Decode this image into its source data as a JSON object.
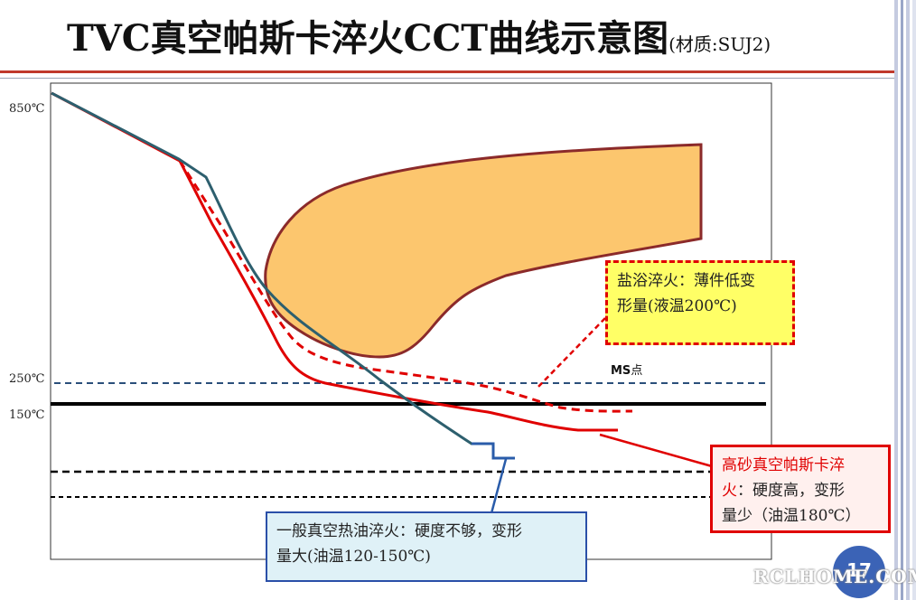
{
  "title": {
    "main": "TVC真空帕斯卡淬火CCT曲线示意图",
    "sub": "(材质:SUJ2)"
  },
  "axis": {
    "y_labels": [
      "850℃",
      "250℃",
      "150℃"
    ]
  },
  "ms_label": {
    "bold": "MS",
    "rest": "点"
  },
  "annotations": {
    "salt_bath": {
      "line1": "盐浴淬火：薄件低变",
      "line2": "形量(液温200℃)"
    },
    "high_pressure": {
      "line1a": "高砂真空帕斯卡淬",
      "line2a": "火",
      "line2b": "：硬度高，变形",
      "line3": "量少（油温180℃）"
    },
    "oil": {
      "line1": "一般真空热油淬火：硬度不够，变形",
      "line2": "量大(油温120-150℃)"
    }
  },
  "page_number": "17",
  "watermark": "RCLHOME.COM",
  "colors": {
    "red": "#e00000",
    "teal": "#2d5f6e",
    "orange_fill": "#fcc66e",
    "orange_border": "#8b2a2a",
    "blue": "#2a5caa",
    "title_rule": "#c0392b"
  }
}
